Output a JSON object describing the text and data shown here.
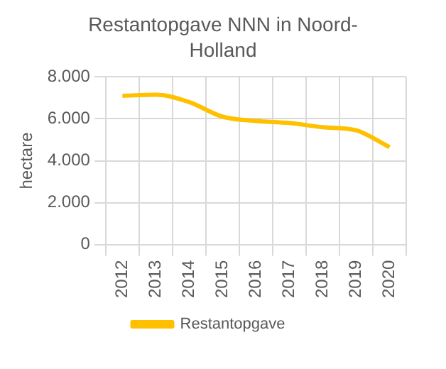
{
  "chart_data": {
    "type": "line",
    "title": "Restantopgave NNN in Noord-Holland",
    "ylabel": "hectare",
    "categories": [
      "2012",
      "2013",
      "2014",
      "2015",
      "2016",
      "2017",
      "2018",
      "2019",
      "2020"
    ],
    "series": [
      {
        "name": "Restantopgave",
        "color": "#ffc000",
        "values": [
          7100,
          7150,
          6800,
          6100,
          5900,
          5800,
          5600,
          5450,
          4650
        ]
      }
    ],
    "ylim": [
      0,
      8000
    ],
    "yticks": [
      {
        "value": 0,
        "label": "0"
      },
      {
        "value": 2000,
        "label": "2.000"
      },
      {
        "value": 4000,
        "label": "4.000"
      },
      {
        "value": 6000,
        "label": "6.000"
      },
      {
        "value": 8000,
        "label": "8.000"
      }
    ],
    "grid": true,
    "legend": "bottom",
    "marker": "none",
    "line_style": "solid"
  }
}
